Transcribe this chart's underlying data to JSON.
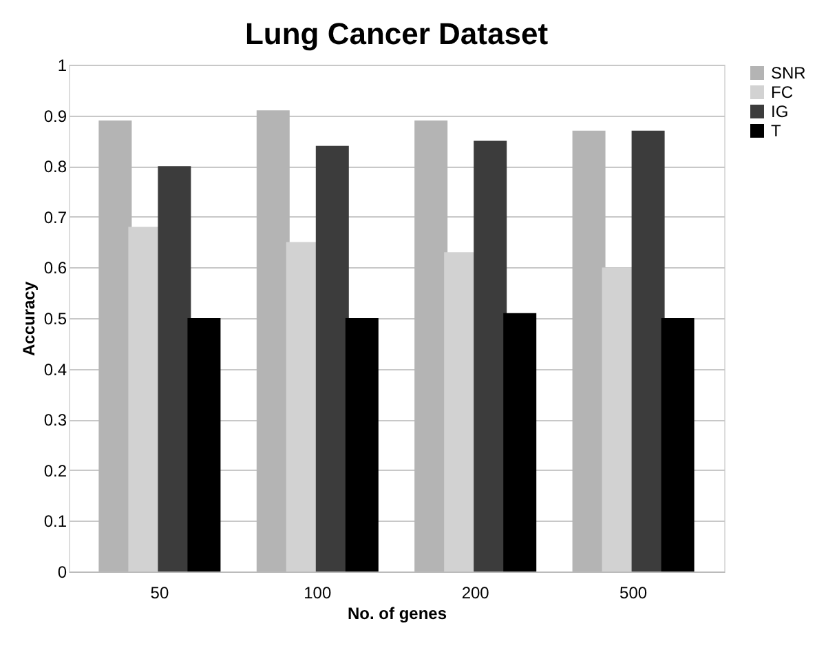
{
  "chart_data": {
    "type": "bar",
    "title": "Lung Cancer Dataset",
    "xlabel": "No. of genes",
    "ylabel": "Accuracy",
    "categories": [
      "50",
      "100",
      "200",
      "500"
    ],
    "series": [
      {
        "name": "SNR",
        "color": "#b4b4b4",
        "values": [
          0.89,
          0.91,
          0.89,
          0.87
        ]
      },
      {
        "name": "FC",
        "color": "#d2d2d2",
        "values": [
          0.68,
          0.65,
          0.63,
          0.6
        ]
      },
      {
        "name": "IG",
        "color": "#3c3c3c",
        "values": [
          0.8,
          0.84,
          0.85,
          0.87
        ]
      },
      {
        "name": "T",
        "color": "#000000",
        "values": [
          0.5,
          0.5,
          0.51,
          0.5
        ]
      }
    ],
    "ylim": [
      0,
      1
    ],
    "yticks": [
      0,
      0.1,
      0.2,
      0.3,
      0.4,
      0.5,
      0.6,
      0.7,
      0.8,
      0.9,
      1
    ],
    "grid": "y",
    "legend": "right"
  }
}
